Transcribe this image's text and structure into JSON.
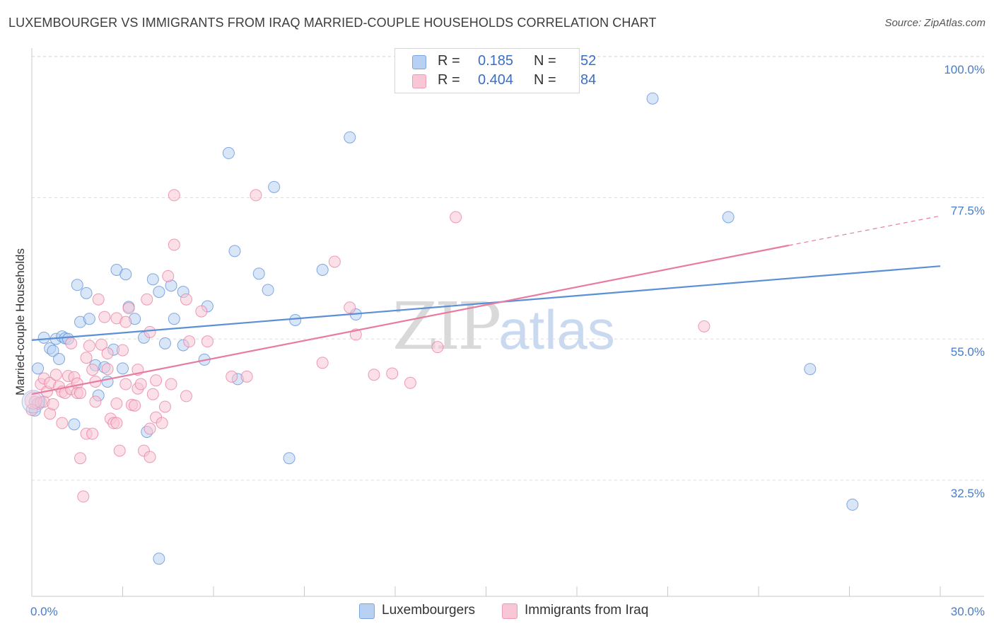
{
  "title": "LUXEMBOURGER VS IMMIGRANTS FROM IRAQ MARRIED-COUPLE HOUSEHOLDS CORRELATION CHART",
  "source": "Source: ZipAtlas.com",
  "watermark": {
    "zip": "ZIP",
    "atlas": "atlas"
  },
  "legend": {
    "r_label": "R =",
    "n_label": "N =",
    "rows": [
      {
        "r": "0.185",
        "n": "52",
        "fill": "#b8d1f3",
        "stroke": "#7aa5e0"
      },
      {
        "r": "0.404",
        "n": "84",
        "fill": "#f8c6d5",
        "stroke": "#ee9ab4"
      }
    ]
  },
  "bottom_legend": [
    "Luxembourgers",
    "Immigrants from Iraq"
  ],
  "chart_data": {
    "type": "scatter",
    "title": "LUXEMBOURGER VS IMMIGRANTS FROM IRAQ MARRIED-COUPLE HOUSEHOLDS CORRELATION CHART",
    "xlabel": "",
    "ylabel": "Married-couple Households",
    "xlim": [
      0,
      30
    ],
    "ylim": [
      14,
      102
    ],
    "x_tick_labels": [
      "0.0%",
      "30.0%"
    ],
    "y_ticks": [
      32.5,
      55.0,
      77.5,
      100.0
    ],
    "y_tick_labels": [
      "32.5%",
      "55.0%",
      "77.5%",
      "100.0%"
    ],
    "grid": true,
    "series": [
      {
        "name": "Luxembourgers",
        "color": "#5b8fd6",
        "fill": "#b8d1f3",
        "r": 0.185,
        "n": 52,
        "trend": {
          "x0": 0,
          "y0": 54.8,
          "x1": 30,
          "y1": 66.6,
          "dashed_from": null
        },
        "points": [
          [
            0.2,
            50.3
          ],
          [
            0.4,
            55.2
          ],
          [
            0.6,
            53.5
          ],
          [
            0.7,
            53.1
          ],
          [
            0.8,
            55.0
          ],
          [
            0.9,
            51.8
          ],
          [
            1.0,
            55.4
          ],
          [
            1.1,
            55.1
          ],
          [
            1.2,
            55.0
          ],
          [
            1.4,
            41.4
          ],
          [
            1.5,
            63.6
          ],
          [
            1.6,
            57.7
          ],
          [
            1.8,
            62.3
          ],
          [
            1.9,
            58.2
          ],
          [
            2.1,
            50.8
          ],
          [
            2.2,
            46.0
          ],
          [
            2.4,
            50.5
          ],
          [
            2.5,
            48.2
          ],
          [
            2.7,
            53.3
          ],
          [
            2.8,
            66.0
          ],
          [
            3.0,
            50.3
          ],
          [
            3.1,
            65.3
          ],
          [
            3.2,
            60.1
          ],
          [
            3.4,
            58.2
          ],
          [
            3.7,
            55.2
          ],
          [
            3.8,
            40.2
          ],
          [
            4.0,
            64.5
          ],
          [
            4.2,
            62.5
          ],
          [
            4.4,
            54.3
          ],
          [
            4.6,
            63.5
          ],
          [
            4.7,
            58.2
          ],
          [
            5.0,
            54.0
          ],
          [
            5.0,
            62.5
          ],
          [
            5.7,
            51.7
          ],
          [
            5.8,
            60.2
          ],
          [
            6.5,
            84.6
          ],
          [
            6.7,
            69.0
          ],
          [
            6.8,
            48.6
          ],
          [
            7.5,
            65.4
          ],
          [
            7.8,
            62.8
          ],
          [
            8.0,
            79.2
          ],
          [
            8.5,
            36.0
          ],
          [
            8.7,
            58.0
          ],
          [
            9.6,
            66.0
          ],
          [
            10.5,
            87.1
          ],
          [
            10.7,
            58.9
          ],
          [
            20.5,
            93.3
          ],
          [
            23.0,
            74.4
          ],
          [
            25.7,
            50.2
          ],
          [
            27.1,
            28.6
          ],
          [
            4.2,
            20.0
          ],
          [
            0.1,
            43.6
          ]
        ]
      },
      {
        "name": "Immigrants from Iraq",
        "color": "#e87ba0",
        "fill": "#f8c6d5",
        "r": 0.404,
        "n": 84,
        "trend": {
          "x0": 0,
          "y0": 46.2,
          "x1": 25.0,
          "y1": 69.9,
          "dashed_from": 25.0,
          "dashed_x1": 30,
          "dashed_y1": 74.6
        },
        "points": [
          [
            0.1,
            45.0
          ],
          [
            0.2,
            44.7
          ],
          [
            0.3,
            44.9
          ],
          [
            0.3,
            47.8
          ],
          [
            0.4,
            45.0
          ],
          [
            0.4,
            48.7
          ],
          [
            0.5,
            46.6
          ],
          [
            0.6,
            43.1
          ],
          [
            0.6,
            48.0
          ],
          [
            0.7,
            44.6
          ],
          [
            0.8,
            49.3
          ],
          [
            0.9,
            47.4
          ],
          [
            1.0,
            46.6
          ],
          [
            1.0,
            41.6
          ],
          [
            1.1,
            46.4
          ],
          [
            1.2,
            49.1
          ],
          [
            1.3,
            54.3
          ],
          [
            1.3,
            47.0
          ],
          [
            1.4,
            48.9
          ],
          [
            1.5,
            47.9
          ],
          [
            1.5,
            46.4
          ],
          [
            1.6,
            36.0
          ],
          [
            1.6,
            46.4
          ],
          [
            1.7,
            29.9
          ],
          [
            1.8,
            39.9
          ],
          [
            1.8,
            52.0
          ],
          [
            1.9,
            53.9
          ],
          [
            2.0,
            39.9
          ],
          [
            2.0,
            50.1
          ],
          [
            2.1,
            48.2
          ],
          [
            2.1,
            45.0
          ],
          [
            2.2,
            61.3
          ],
          [
            2.3,
            54.1
          ],
          [
            2.4,
            58.5
          ],
          [
            2.5,
            52.7
          ],
          [
            2.5,
            50.2
          ],
          [
            2.6,
            42.3
          ],
          [
            2.7,
            41.6
          ],
          [
            2.8,
            58.3
          ],
          [
            2.8,
            44.7
          ],
          [
            2.8,
            41.6
          ],
          [
            2.9,
            37.2
          ],
          [
            3.0,
            53.2
          ],
          [
            3.1,
            47.8
          ],
          [
            3.1,
            57.7
          ],
          [
            3.2,
            59.9
          ],
          [
            3.3,
            44.5
          ],
          [
            3.4,
            44.4
          ],
          [
            3.5,
            50.1
          ],
          [
            3.5,
            47.1
          ],
          [
            3.6,
            47.8
          ],
          [
            3.7,
            37.2
          ],
          [
            3.8,
            61.3
          ],
          [
            3.9,
            56.1
          ],
          [
            3.9,
            40.7
          ],
          [
            4.0,
            46.2
          ],
          [
            4.1,
            48.4
          ],
          [
            4.1,
            42.5
          ],
          [
            4.3,
            41.6
          ],
          [
            4.4,
            44.2
          ],
          [
            4.5,
            65.0
          ],
          [
            4.6,
            47.8
          ],
          [
            4.7,
            77.9
          ],
          [
            4.7,
            70.0
          ],
          [
            5.1,
            61.3
          ],
          [
            5.1,
            45.9
          ],
          [
            5.2,
            54.6
          ],
          [
            5.6,
            59.4
          ],
          [
            5.8,
            54.6
          ],
          [
            6.6,
            49.0
          ],
          [
            7.1,
            49.0
          ],
          [
            7.4,
            77.9
          ],
          [
            9.6,
            51.2
          ],
          [
            10.0,
            67.3
          ],
          [
            10.5,
            60.0
          ],
          [
            10.7,
            55.7
          ],
          [
            11.3,
            49.3
          ],
          [
            11.9,
            49.5
          ],
          [
            12.5,
            48.0
          ],
          [
            13.4,
            53.7
          ],
          [
            14.0,
            74.4
          ],
          [
            22.2,
            57.0
          ],
          [
            0.0,
            43.7
          ],
          [
            3.9,
            36.2
          ]
        ]
      }
    ]
  }
}
